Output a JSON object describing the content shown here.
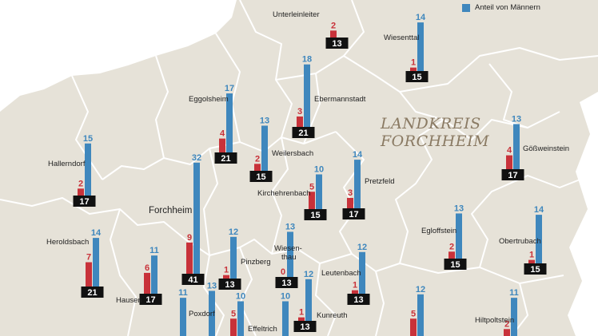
{
  "map": {
    "title_lines": [
      "LANDKREIS",
      "FORCHHEIM"
    ],
    "legend_label": "Anteil von Männern",
    "colors": {
      "background": "#ffffff",
      "land": "#e6e2d8",
      "border": "#ffffff",
      "men_bar": "#3f87bd",
      "women_bar": "#c8323a",
      "total_box": "#111111",
      "title": "#8a7a63"
    }
  },
  "municipalities": [
    {
      "name": "Unterleinleiter",
      "men": null,
      "women": 2,
      "total": 13
    },
    {
      "name": "Wiesenttal",
      "men": 14,
      "women": 1,
      "total": 15
    },
    {
      "name": "Eggolsheim",
      "men": 17,
      "women": 4,
      "total": 21
    },
    {
      "name": "Ebermannstadt",
      "men": 18,
      "women": 3,
      "total": 21
    },
    {
      "name": "Weilersbach",
      "men": 13,
      "women": 2,
      "total": 15
    },
    {
      "name": "Gößweinstein",
      "men": 13,
      "women": 4,
      "total": 17
    },
    {
      "name": "Hallerndorf",
      "men": 15,
      "women": 2,
      "total": 17
    },
    {
      "name": "Forchheim",
      "men": 32,
      "women": 9,
      "total": 41
    },
    {
      "name": "Kirchehrenbach",
      "men": 10,
      "women": 5,
      "total": 15
    },
    {
      "name": "Pretzfeld",
      "men": 14,
      "women": 3,
      "total": 17
    },
    {
      "name": "Heroldsbach",
      "men": 14,
      "women": 7,
      "total": 21
    },
    {
      "name": "Hausen",
      "men": 11,
      "women": 6,
      "total": 17
    },
    {
      "name": "Pinzberg",
      "men": 12,
      "women": 1,
      "total": 13
    },
    {
      "name": "Wiesenthau",
      "label_lines": [
        "Wiesen-",
        "thau"
      ],
      "men": 13,
      "women": 0,
      "total": 13
    },
    {
      "name": "Leutenbach",
      "men": 12,
      "women": 1,
      "total": 13
    },
    {
      "name": "Egloffstein",
      "men": 13,
      "women": 2,
      "total": 15
    },
    {
      "name": "Obertrubach",
      "men": 14,
      "women": 1,
      "total": 15
    },
    {
      "name": "Kunreuth",
      "men": 12,
      "women": 1,
      "total": 13
    },
    {
      "name": "Poxdorf",
      "men": 11,
      "women": null,
      "total": null
    },
    {
      "name": "Effeltrich",
      "men": 10,
      "women": 5,
      "total": null
    },
    {
      "name": "Hiltpoltstein",
      "men": 11,
      "women": 2,
      "total": null
    },
    {
      "name": null,
      "men": 13,
      "women": null,
      "total": null
    },
    {
      "name": null,
      "men": 10,
      "women": null,
      "total": null
    },
    {
      "name": null,
      "men": 12,
      "women": 5,
      "total": null
    }
  ]
}
